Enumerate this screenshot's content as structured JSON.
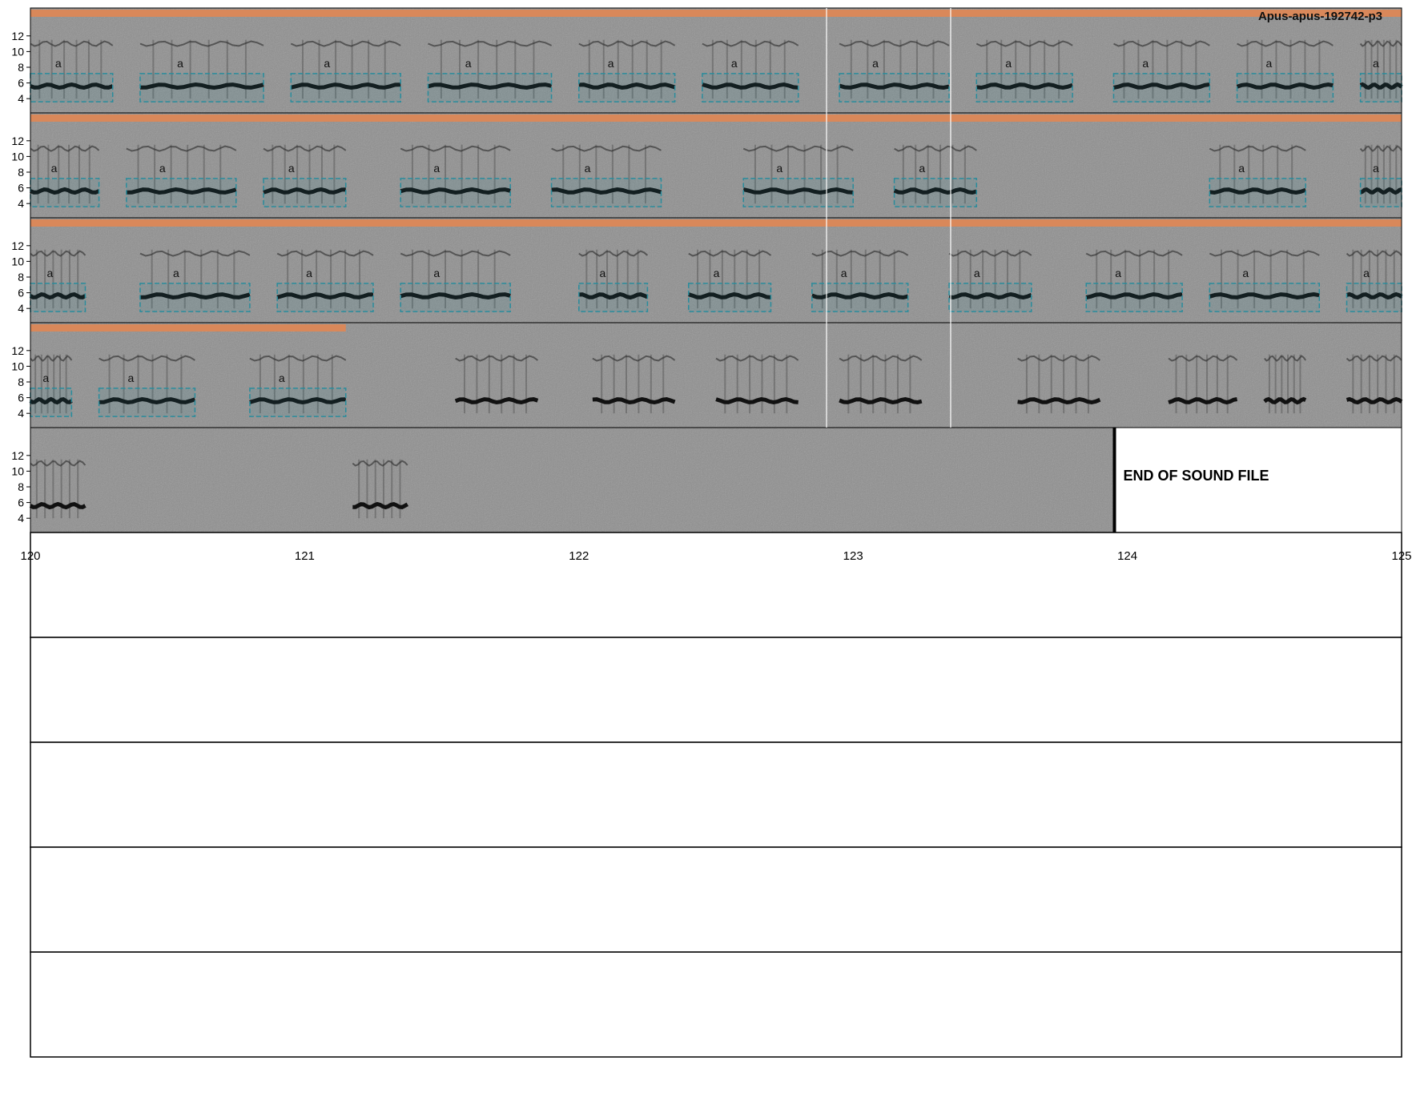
{
  "title": "Apus-apus-192742-p3",
  "end_label": "END OF SOUND FILE",
  "y_ticks": [
    "12",
    "10",
    "8",
    "6",
    "4"
  ],
  "call_label": "a",
  "x_ticks": [
    "120",
    "121",
    "122",
    "123",
    "124",
    "125"
  ],
  "colors": {
    "orange_band": "#d9885a",
    "box_teal": "#2a8c9c",
    "spectrogram_bg": "#8e8e8e",
    "call_dark": "#111111"
  },
  "rows": [
    {
      "calls": [
        [
          0.0,
          0.06
        ],
        [
          0.08,
          0.17
        ],
        [
          0.19,
          0.27
        ],
        [
          0.29,
          0.38
        ],
        [
          0.4,
          0.47
        ],
        [
          0.49,
          0.56
        ],
        [
          0.59,
          0.67
        ],
        [
          0.69,
          0.76
        ],
        [
          0.79,
          0.86
        ],
        [
          0.88,
          0.95
        ],
        [
          0.97,
          1.0
        ]
      ],
      "boxes": true,
      "orange_end": 1.0
    },
    {
      "calls": [
        [
          0.0,
          0.05
        ],
        [
          0.07,
          0.15
        ],
        [
          0.17,
          0.23
        ],
        [
          0.27,
          0.35
        ],
        [
          0.38,
          0.46
        ],
        [
          0.52,
          0.6
        ],
        [
          0.63,
          0.69
        ],
        [
          0.86,
          0.93
        ],
        [
          0.97,
          1.0
        ]
      ],
      "boxes": true,
      "orange_end": 1.0
    },
    {
      "calls": [
        [
          0.0,
          0.04
        ],
        [
          0.08,
          0.16
        ],
        [
          0.18,
          0.25
        ],
        [
          0.27,
          0.35
        ],
        [
          0.4,
          0.45
        ],
        [
          0.48,
          0.54
        ],
        [
          0.57,
          0.64
        ],
        [
          0.67,
          0.73
        ],
        [
          0.77,
          0.84
        ],
        [
          0.86,
          0.94
        ],
        [
          0.96,
          1.0
        ]
      ],
      "boxes": true,
      "orange_end": 1.0
    },
    {
      "calls": [
        [
          0.0,
          0.03
        ],
        [
          0.05,
          0.12
        ],
        [
          0.16,
          0.23
        ],
        [
          0.31,
          0.37
        ],
        [
          0.41,
          0.47
        ],
        [
          0.5,
          0.56
        ],
        [
          0.59,
          0.65
        ],
        [
          0.72,
          0.78
        ],
        [
          0.83,
          0.88
        ],
        [
          0.9,
          0.93
        ],
        [
          0.96,
          1.0
        ]
      ],
      "boxes_for": 3,
      "orange_end": 0.23
    },
    {
      "calls": [
        [
          0.0,
          0.04
        ],
        [
          0.235,
          0.275
        ]
      ],
      "boxes_for": 0,
      "orange_end": 0.0,
      "end_at": 0.79
    }
  ]
}
